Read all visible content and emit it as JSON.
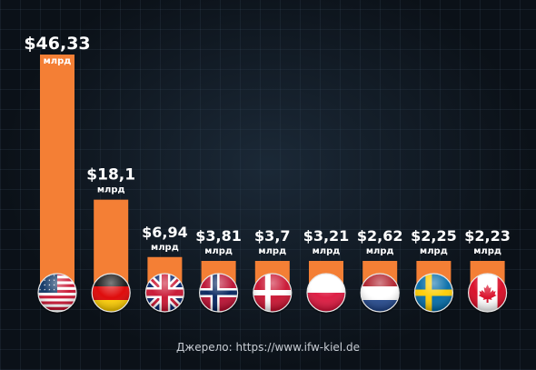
{
  "chart_data": {
    "type": "bar",
    "categories": [
      "USA",
      "Germany",
      "United Kingdom",
      "Norway",
      "Denmark",
      "Poland",
      "Netherlands",
      "Sweden",
      "Canada"
    ],
    "values": [
      46.33,
      18.1,
      6.94,
      3.81,
      3.7,
      3.21,
      2.62,
      2.25,
      2.23
    ],
    "labels": [
      "$46,33",
      "$18,1",
      "$6,94",
      "$3,81",
      "$3,7",
      "$3,21",
      "$2,62",
      "$2,25",
      "$2,23"
    ],
    "unit_label": "млрд",
    "bar_color": "#f47f35",
    "legend": "none",
    "grid": false
  },
  "source": "Джерело: https://www.ifw-kiel.de",
  "flag_icons": [
    "us-flag-icon",
    "germany-flag-icon",
    "uk-flag-icon",
    "norway-flag-icon",
    "denmark-flag-icon",
    "poland-flag-icon",
    "netherlands-flag-icon",
    "sweden-flag-icon",
    "canada-flag-icon"
  ]
}
